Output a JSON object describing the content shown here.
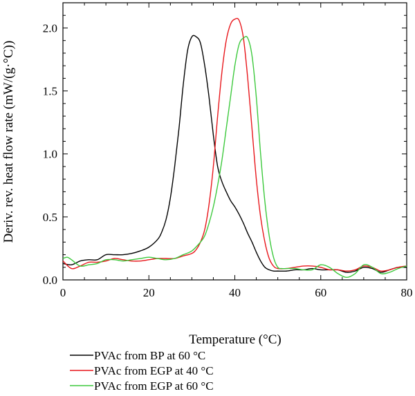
{
  "chart_data": {
    "type": "line",
    "title": "",
    "xlabel": "Temperature (°C)",
    "ylabel": "Deriv. rev. heat flow rate (mW/(g·°C))",
    "xlim": [
      0,
      80
    ],
    "ylim": [
      0,
      2.2
    ],
    "xticks": [
      0,
      20,
      40,
      60,
      80
    ],
    "xtick_labels": [
      "0",
      "20",
      "40",
      "60",
      "80"
    ],
    "yticks": [
      0.0,
      0.5,
      1.0,
      1.5,
      2.0
    ],
    "ytick_labels": [
      "0.0",
      "0.5",
      "1.0",
      "1.5",
      "2.0"
    ],
    "grid": false,
    "legend_position": "bottom-left",
    "series": [
      {
        "name": "PVAc from BP at 60 °C",
        "color": "#000000",
        "x": [
          0,
          2,
          4,
          6,
          8,
          10,
          12,
          14,
          16,
          18,
          20,
          22,
          23,
          24,
          25,
          26,
          27,
          28,
          29,
          30,
          31,
          32,
          33,
          34,
          35,
          36,
          37,
          38,
          39,
          40,
          41,
          42,
          43,
          44,
          45,
          46,
          47,
          48,
          49,
          50,
          52,
          54,
          56,
          58,
          60,
          62,
          64,
          66,
          68,
          70,
          72,
          74,
          76,
          78,
          80
        ],
        "y": [
          0.13,
          0.12,
          0.15,
          0.16,
          0.16,
          0.2,
          0.2,
          0.2,
          0.21,
          0.23,
          0.26,
          0.32,
          0.38,
          0.48,
          0.65,
          0.9,
          1.2,
          1.55,
          1.82,
          1.93,
          1.93,
          1.88,
          1.7,
          1.45,
          1.15,
          0.9,
          0.78,
          0.7,
          0.63,
          0.58,
          0.52,
          0.45,
          0.37,
          0.3,
          0.22,
          0.15,
          0.1,
          0.08,
          0.07,
          0.07,
          0.07,
          0.08,
          0.08,
          0.09,
          0.08,
          0.08,
          0.08,
          0.06,
          0.07,
          0.1,
          0.09,
          0.06,
          0.08,
          0.1,
          0.1
        ]
      },
      {
        "name": "PVAc from EGP at 40 °C",
        "color": "#e8161b",
        "x": [
          0,
          2,
          4,
          6,
          8,
          10,
          12,
          14,
          16,
          18,
          20,
          22,
          24,
          26,
          28,
          30,
          31,
          32,
          33,
          34,
          35,
          36,
          37,
          38,
          39,
          40,
          41,
          42,
          43,
          44,
          45,
          46,
          47,
          48,
          49,
          50,
          52,
          54,
          56,
          58,
          60,
          62,
          64,
          66,
          68,
          70,
          72,
          74,
          76,
          78,
          80
        ],
        "y": [
          0.15,
          0.09,
          0.11,
          0.14,
          0.14,
          0.15,
          0.17,
          0.16,
          0.15,
          0.15,
          0.16,
          0.17,
          0.17,
          0.17,
          0.19,
          0.21,
          0.24,
          0.3,
          0.4,
          0.6,
          0.9,
          1.3,
          1.65,
          1.9,
          2.03,
          2.07,
          2.06,
          1.92,
          1.6,
          1.2,
          0.8,
          0.5,
          0.3,
          0.17,
          0.11,
          0.09,
          0.09,
          0.1,
          0.11,
          0.11,
          0.1,
          0.08,
          0.08,
          0.07,
          0.08,
          0.11,
          0.1,
          0.07,
          0.08,
          0.1,
          0.11
        ]
      },
      {
        "name": "PVAc from EGP at 60 °C",
        "color": "#3cc93c",
        "x": [
          0,
          1,
          2,
          4,
          6,
          8,
          10,
          12,
          14,
          16,
          18,
          20,
          22,
          24,
          26,
          28,
          30,
          32,
          33,
          34,
          35,
          36,
          37,
          38,
          39,
          40,
          41,
          42,
          43,
          44,
          45,
          46,
          47,
          48,
          49,
          50,
          51,
          52,
          54,
          56,
          58,
          60,
          62,
          64,
          66,
          68,
          70,
          72,
          74,
          76,
          78,
          80
        ],
        "y": [
          0.17,
          0.18,
          0.16,
          0.11,
          0.12,
          0.13,
          0.16,
          0.16,
          0.15,
          0.16,
          0.17,
          0.18,
          0.17,
          0.16,
          0.17,
          0.2,
          0.23,
          0.3,
          0.35,
          0.45,
          0.58,
          0.75,
          0.95,
          1.2,
          1.45,
          1.7,
          1.87,
          1.92,
          1.92,
          1.78,
          1.45,
          1.0,
          0.62,
          0.35,
          0.18,
          0.1,
          0.09,
          0.09,
          0.09,
          0.08,
          0.08,
          0.12,
          0.1,
          0.05,
          0.02,
          0.05,
          0.12,
          0.1,
          0.05,
          0.06,
          0.09,
          0.11
        ]
      }
    ]
  }
}
